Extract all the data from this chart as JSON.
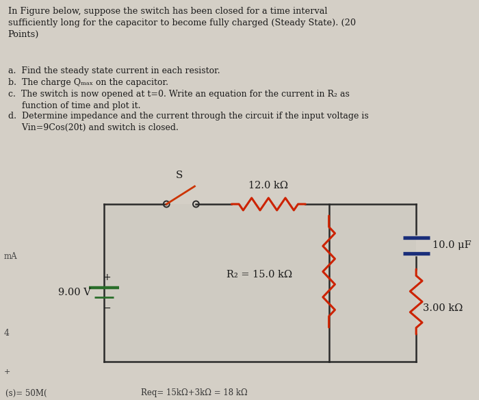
{
  "bg_color": "#d4cfc6",
  "title_text": "In Figure below, suppose the switch has been closed for a time interval\nsufficiently long for the capacitor to become fully charged (Steady State). (20\nPoints)",
  "q_a": "a.  Find the steady state current in each resistor.",
  "q_b": "b.  The charge Qₘₐₓ on the capacitor.",
  "q_c": "c.  The switch is now opened at t=0. Write an equation for the current in R₂ as\n     function of time and plot it.",
  "q_d": "d.  Determine impedance and the current through the circuit if the input voltage is\n     Vin=9Cos(20t) and switch is closed.",
  "voltage_label": "9.00 V",
  "r1_label": "12.0 kΩ",
  "r2_label": "R₂ = 15.0 kΩ",
  "r3_label": "3.00 kΩ",
  "cap_label": "10.0 μF",
  "switch_label": "S",
  "bottom_text_left": "(s)= 50M(",
  "bottom_text_right": "Req= 15kΩ+3kΩ = 18 kΩ",
  "side_text_mA": "mA",
  "side_text_4": "4",
  "side_text_plus": "+",
  "wire_color": "#2a2a2a",
  "resistor_color_red": "#cc2200",
  "resistor_color_green": "#2a6e2a",
  "switch_color_red": "#cc3300",
  "capacitor_color_blue": "#1a2e7a",
  "bg_circuit": "#cdc8be"
}
